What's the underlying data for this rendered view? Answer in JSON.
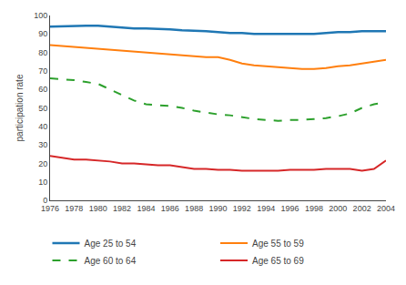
{
  "chart_data": {
    "type": "line",
    "y_label": "participation rate",
    "x": [
      1976,
      1977,
      1978,
      1979,
      1980,
      1981,
      1982,
      1983,
      1984,
      1985,
      1986,
      1987,
      1988,
      1989,
      1990,
      1991,
      1992,
      1993,
      1994,
      1995,
      1996,
      1997,
      1998,
      1999,
      2000,
      2001,
      2002,
      2003,
      2004
    ],
    "series": [
      {
        "name": "Age 25 to 54",
        "line_style": "solid",
        "values": [
          94,
          94.2,
          94.5,
          94.5,
          94.5,
          94,
          93.5,
          93,
          93,
          92.8,
          92.5,
          92,
          91.8,
          91.5,
          91,
          90.5,
          90.5,
          90,
          90,
          90,
          90,
          90,
          90,
          90.5,
          91,
          91,
          91.5,
          91.5,
          91.5
        ]
      },
      {
        "name": "Age 55 to 59",
        "line_style": "solid",
        "values": [
          84,
          83.5,
          83,
          82.5,
          82,
          81.5,
          81,
          80.5,
          80,
          79.5,
          79,
          78.5,
          78,
          77.5,
          77.5,
          76,
          74,
          73,
          72.5,
          72,
          71.5,
          71,
          71,
          71.5,
          72.5,
          73,
          74,
          75,
          76
        ]
      },
      {
        "name": "Age 60 to 64",
        "line_style": "dashed",
        "values": [
          66,
          65.5,
          65,
          64,
          63,
          60,
          57,
          54,
          52,
          51.5,
          51,
          50,
          48.5,
          47.5,
          46.5,
          46,
          45,
          44,
          43.5,
          43,
          43.5,
          43.5,
          44,
          44.5,
          45.5,
          47,
          50,
          52,
          53
        ]
      },
      {
        "name": "Age 65 to 69",
        "line_style": "solid",
        "values": [
          24,
          23,
          22,
          22,
          21.5,
          21,
          20,
          20,
          19.5,
          19,
          19,
          18,
          17,
          17,
          16.5,
          16.5,
          16,
          16,
          16,
          16,
          16.5,
          16.5,
          16.5,
          17,
          17,
          17,
          16,
          17,
          21.5
        ]
      }
    ],
    "xlim": [
      1976,
      2004
    ],
    "xticks": [
      1976,
      1978,
      1980,
      1982,
      1984,
      1986,
      1988,
      1990,
      1992,
      1994,
      1996,
      1998,
      2000,
      2002,
      2004
    ],
    "ylim": [
      0,
      100
    ],
    "yticks": [
      0,
      10,
      20,
      30,
      40,
      50,
      60,
      70,
      80,
      90,
      100
    ],
    "grid": false,
    "legend": "bottom"
  }
}
